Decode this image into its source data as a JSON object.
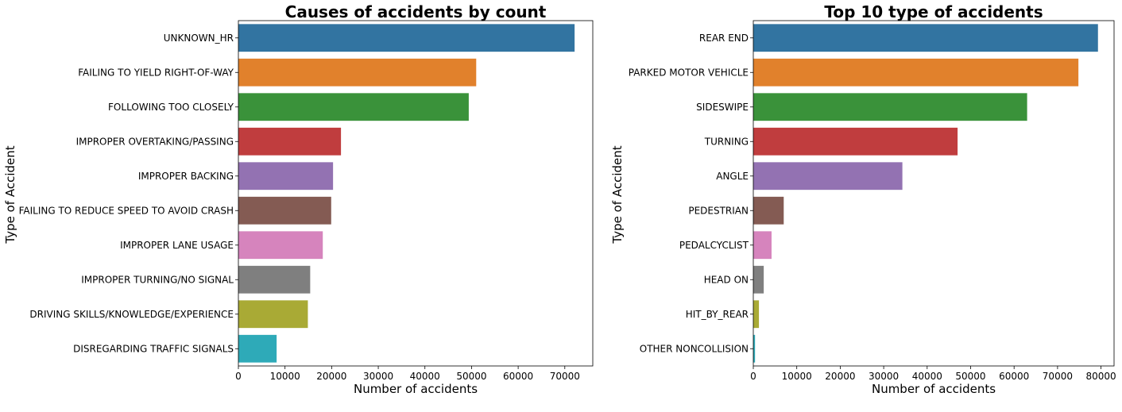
{
  "chart_data": [
    {
      "type": "bar",
      "orientation": "horizontal",
      "title": "Causes of accidents by count",
      "xlabel": "Number of accidents",
      "ylabel": "Type of Accident",
      "xlim": [
        0,
        76000
      ],
      "xticks": [
        0,
        10000,
        20000,
        30000,
        40000,
        50000,
        60000,
        70000
      ],
      "xtick_labels": [
        "0",
        "10000",
        "20000",
        "30000",
        "40000",
        "50000",
        "60000",
        "70000"
      ],
      "categories": [
        "UNKNOWN_HR",
        "FAILING TO YIELD RIGHT-OF-WAY",
        "FOLLOWING TOO CLOSELY",
        "IMPROPER OVERTAKING/PASSING",
        "IMPROPER BACKING",
        "FAILING TO REDUCE SPEED TO AVOID CRASH",
        "IMPROPER LANE USAGE",
        "IMPROPER TURNING/NO SIGNAL",
        "DRIVING SKILLS/KNOWLEDGE/EXPERIENCE",
        "DISREGARDING TRAFFIC SIGNALS"
      ],
      "values": [
        72100,
        51000,
        49400,
        22000,
        20300,
        19900,
        18100,
        15400,
        14900,
        8200
      ],
      "colors": [
        "#3274a1",
        "#e1812c",
        "#3a923a",
        "#c03d3e",
        "#9372b2",
        "#845b53",
        "#d684bd",
        "#7f7f7f",
        "#a9aa35",
        "#2eaab8"
      ],
      "grid": false
    },
    {
      "type": "bar",
      "orientation": "horizontal",
      "title": "Top 10 type of accidents",
      "xlabel": "Number of accidents",
      "ylabel": "Type of Accident",
      "xlim": [
        0,
        83000
      ],
      "xticks": [
        0,
        10000,
        20000,
        30000,
        40000,
        50000,
        60000,
        70000,
        80000
      ],
      "xtick_labels": [
        "0",
        "10000",
        "20000",
        "30000",
        "40000",
        "50000",
        "60000",
        "70000",
        "80000"
      ],
      "categories": [
        "REAR END",
        "PARKED MOTOR VEHICLE",
        "SIDESWIPE",
        "TURNING",
        "ANGLE",
        "PEDESTRIAN",
        "PEDALCYCLIST",
        "HEAD ON",
        "HIT_BY_REAR",
        "OTHER NONCOLLISION"
      ],
      "values": [
        79300,
        74800,
        63000,
        47000,
        34300,
        7000,
        4200,
        2400,
        1300,
        400
      ],
      "colors": [
        "#3274a1",
        "#e1812c",
        "#3a923a",
        "#c03d3e",
        "#9372b2",
        "#845b53",
        "#d684bd",
        "#7f7f7f",
        "#a9aa35",
        "#2eaab8"
      ],
      "grid": false
    }
  ]
}
